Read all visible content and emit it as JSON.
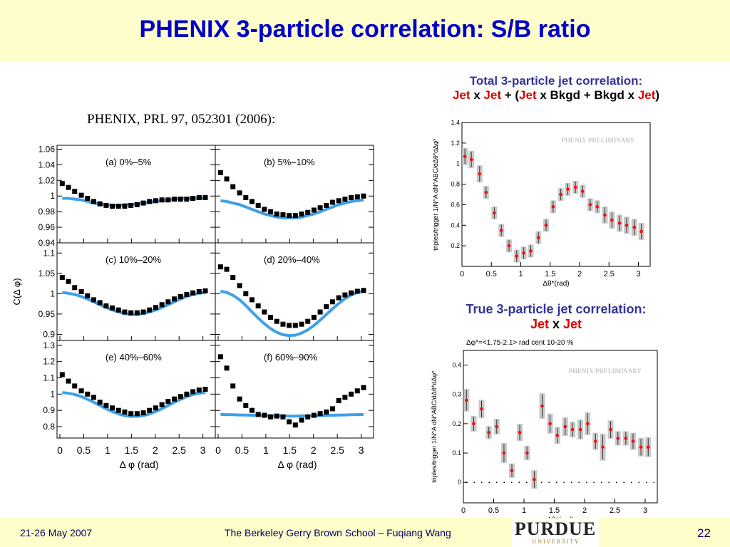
{
  "slide": {
    "title": "PHENIX 3-particle correlation: S/B ratio",
    "citation": "PHENIX, PRL 97, 052301 (2006):",
    "page_number": "22",
    "footer_date": "21-26 May 2007",
    "footer_event": "The Berkeley Gerry Brown School – Fuqiang Wang",
    "logo_text": "PURDUE",
    "logo_subtext": "U N I V E R S I T Y"
  },
  "right_top": {
    "heading": "Total 3-particle jet correlation:",
    "formula": [
      "Jet",
      " x ",
      "Jet",
      " + (",
      "Jet",
      " x Bkgd + Bkgd x ",
      "Jet",
      ")"
    ]
  },
  "right_bottom": {
    "heading": "True 3-particle jet correlation:",
    "formula": [
      "Jet",
      " x ",
      "Jet"
    ]
  },
  "chart_data": [
    {
      "type": "scatter",
      "title": "",
      "ylabel": "C(Δ φ)",
      "xlabel": "Δ φ (rad)",
      "xlim": [
        0,
        3.14
      ],
      "x_ticks": [
        "0",
        "0.5",
        "1",
        "1.5",
        "2",
        "2.5",
        "3"
      ],
      "panels": [
        {
          "label": "(a) 0%–5%",
          "ylim": [
            0.94,
            1.065
          ],
          "y_ticks": [
            "0.94",
            "0.96",
            "0.98",
            "1",
            "1.02",
            "1.04",
            "1.06"
          ],
          "x": [
            0.05,
            0.18,
            0.31,
            0.45,
            0.58,
            0.71,
            0.84,
            0.97,
            1.1,
            1.23,
            1.36,
            1.49,
            1.62,
            1.75,
            1.88,
            2.01,
            2.14,
            2.27,
            2.4,
            2.53,
            2.66,
            2.79,
            2.92,
            3.05
          ],
          "y": [
            1.016,
            1.011,
            1.006,
            1.001,
            0.997,
            0.993,
            0.99,
            0.988,
            0.987,
            0.987,
            0.987,
            0.988,
            0.989,
            0.991,
            0.993,
            0.994,
            0.995,
            0.995,
            0.996,
            0.996,
            0.996,
            0.997,
            0.998,
            0.998
          ],
          "fit": [
            0.997,
            0.997,
            0.996,
            0.995,
            0.993,
            0.991,
            0.99,
            0.989,
            0.988,
            0.988,
            0.989,
            0.989,
            0.99,
            0.991,
            0.992,
            0.993,
            0.994,
            0.995,
            0.996,
            0.997,
            0.997,
            0.997,
            0.997,
            0.998
          ]
        },
        {
          "label": "(b) 5%–10%",
          "ylim": [
            0.94,
            1.065
          ],
          "y_ticks": [],
          "x": [
            0.05,
            0.18,
            0.31,
            0.45,
            0.58,
            0.71,
            0.84,
            0.97,
            1.1,
            1.23,
            1.36,
            1.49,
            1.62,
            1.75,
            1.88,
            2.01,
            2.14,
            2.27,
            2.4,
            2.53,
            2.66,
            2.79,
            2.92,
            3.05
          ],
          "y": [
            1.03,
            1.022,
            1.012,
            1.004,
            0.998,
            0.993,
            0.988,
            0.983,
            0.98,
            0.977,
            0.976,
            0.975,
            0.975,
            0.977,
            0.979,
            0.982,
            0.985,
            0.988,
            0.992,
            0.994,
            0.996,
            0.998,
            0.999,
            1.0
          ],
          "fit": [
            0.994,
            0.993,
            0.991,
            0.989,
            0.986,
            0.983,
            0.98,
            0.977,
            0.975,
            0.973,
            0.972,
            0.972,
            0.972,
            0.973,
            0.975,
            0.977,
            0.98,
            0.983,
            0.986,
            0.989,
            0.991,
            0.993,
            0.994,
            0.995
          ]
        },
        {
          "label": "(c) 10%–20%",
          "ylim": [
            0.885,
            1.125
          ],
          "y_ticks": [
            "0.9",
            "0.95",
            "1",
            "1.05",
            "1.1"
          ],
          "x": [
            0.05,
            0.18,
            0.31,
            0.45,
            0.58,
            0.71,
            0.84,
            0.97,
            1.1,
            1.23,
            1.36,
            1.49,
            1.62,
            1.75,
            1.88,
            2.01,
            2.14,
            2.27,
            2.4,
            2.53,
            2.66,
            2.79,
            2.92,
            3.05
          ],
          "y": [
            1.04,
            1.03,
            1.015,
            1.005,
            0.995,
            0.985,
            0.978,
            0.97,
            0.965,
            0.96,
            0.955,
            0.953,
            0.953,
            0.955,
            0.96,
            0.966,
            0.973,
            0.98,
            0.987,
            0.993,
            0.998,
            1.002,
            1.005,
            1.007
          ],
          "fit": [
            1.003,
            1.001,
            0.998,
            0.993,
            0.987,
            0.98,
            0.973,
            0.966,
            0.96,
            0.955,
            0.951,
            0.949,
            0.949,
            0.951,
            0.955,
            0.96,
            0.966,
            0.973,
            0.98,
            0.987,
            0.993,
            0.998,
            1.001,
            1.003
          ]
        },
        {
          "label": "(d) 20%–40%",
          "ylim": [
            0.885,
            1.125
          ],
          "y_ticks": [],
          "x": [
            0.05,
            0.18,
            0.31,
            0.45,
            0.58,
            0.71,
            0.84,
            0.97,
            1.1,
            1.23,
            1.36,
            1.49,
            1.62,
            1.75,
            1.88,
            2.01,
            2.14,
            2.27,
            2.4,
            2.53,
            2.66,
            2.79,
            2.92,
            3.05
          ],
          "y": [
            1.066,
            1.06,
            1.04,
            1.02,
            1.0,
            0.985,
            0.97,
            0.955,
            0.942,
            0.932,
            0.925,
            0.922,
            0.922,
            0.925,
            0.932,
            0.942,
            0.955,
            0.968,
            0.98,
            0.99,
            0.997,
            1.002,
            1.006,
            1.008
          ],
          "fit": [
            1.006,
            1.003,
            0.996,
            0.985,
            0.971,
            0.955,
            0.94,
            0.926,
            0.914,
            0.905,
            0.899,
            0.897,
            0.898,
            0.903,
            0.911,
            0.922,
            0.935,
            0.949,
            0.963,
            0.976,
            0.988,
            0.997,
            1.003,
            1.006
          ]
        },
        {
          "label": "(e) 40%–60%",
          "ylim": [
            0.73,
            1.33
          ],
          "y_ticks": [
            "0.8",
            "0.9",
            "1",
            "1.1",
            "1.2",
            "1.3"
          ],
          "x": [
            0.05,
            0.18,
            0.31,
            0.45,
            0.58,
            0.71,
            0.84,
            0.97,
            1.1,
            1.23,
            1.36,
            1.49,
            1.62,
            1.75,
            1.88,
            2.01,
            2.14,
            2.27,
            2.4,
            2.53,
            2.66,
            2.79,
            2.92,
            3.05
          ],
          "y": [
            1.12,
            1.08,
            1.05,
            1.02,
            1.0,
            0.98,
            0.95,
            0.93,
            0.915,
            0.9,
            0.89,
            0.88,
            0.88,
            0.885,
            0.9,
            0.915,
            0.935,
            0.955,
            0.97,
            0.985,
            1.0,
            1.015,
            1.025,
            1.03
          ],
          "fit": [
            1.01,
            1.005,
            0.998,
            0.985,
            0.968,
            0.95,
            0.93,
            0.91,
            0.893,
            0.878,
            0.868,
            0.863,
            0.863,
            0.868,
            0.878,
            0.893,
            0.91,
            0.93,
            0.95,
            0.968,
            0.985,
            0.998,
            1.005,
            1.01
          ]
        },
        {
          "label": "(f) 60%–90%",
          "ylim": [
            0.73,
            1.33
          ],
          "y_ticks": [],
          "x": [
            0.05,
            0.18,
            0.31,
            0.45,
            0.58,
            0.71,
            0.84,
            0.97,
            1.1,
            1.23,
            1.36,
            1.49,
            1.62,
            1.75,
            1.88,
            2.01,
            2.14,
            2.27,
            2.4,
            2.53,
            2.66,
            2.79,
            2.92,
            3.05
          ],
          "y": [
            1.23,
            1.16,
            1.05,
            0.97,
            0.93,
            0.9,
            0.875,
            0.87,
            0.86,
            0.865,
            0.86,
            0.83,
            0.81,
            0.84,
            0.86,
            0.87,
            0.88,
            0.89,
            0.91,
            0.96,
            0.98,
            1.0,
            1.02,
            1.04
          ],
          "fit": [
            0.875,
            0.874,
            0.873,
            0.872,
            0.871,
            0.87,
            0.869,
            0.868,
            0.867,
            0.866,
            0.866,
            0.865,
            0.865,
            0.866,
            0.866,
            0.867,
            0.868,
            0.869,
            0.87,
            0.871,
            0.872,
            0.873,
            0.874,
            0.875
          ]
        }
      ]
    },
    {
      "type": "scatter",
      "title": "",
      "ylabel": "triples/trigger 1/N^A dN^ABC/dΔθ*dΔφ*",
      "xlabel": "Δθ*(rad)",
      "watermark": "PHENIX PRELIMINARY",
      "xlim": [
        0,
        3.2
      ],
      "ylim": [
        0,
        1.4
      ],
      "x_ticks": [
        "0",
        "0.5",
        "1",
        "1.5",
        "2",
        "2.5",
        "3"
      ],
      "y_ticks": [
        "0.2",
        "0.4",
        "0.6",
        "0.8",
        "1",
        "1.2",
        "1.4"
      ],
      "x": [
        0.05,
        0.16,
        0.3,
        0.41,
        0.55,
        0.67,
        0.8,
        0.93,
        1.05,
        1.17,
        1.3,
        1.43,
        1.55,
        1.68,
        1.8,
        1.93,
        2.05,
        2.18,
        2.3,
        2.43,
        2.55,
        2.68,
        2.8,
        2.93,
        3.05
      ],
      "y": [
        1.07,
        1.04,
        0.9,
        0.72,
        0.52,
        0.35,
        0.2,
        0.1,
        0.13,
        0.15,
        0.28,
        0.4,
        0.58,
        0.7,
        0.75,
        0.77,
        0.73,
        0.6,
        0.58,
        0.5,
        0.45,
        0.42,
        0.4,
        0.38,
        0.34
      ]
    },
    {
      "type": "scatter",
      "title": "Δφ*=<1.75-2.1> rad     cent 10-20 %",
      "ylabel": "triples/trigger 1/N^A dN^ABC/dΔθ*dΔφ*",
      "xlabel": "Δθ*(rad)",
      "watermark": "PHENIX PRELIMINARY",
      "xlim": [
        0,
        3.2
      ],
      "ylim": [
        -0.07,
        0.45
      ],
      "x_ticks": [
        "0",
        "0.5",
        "1",
        "1.5",
        "2",
        "2.5",
        "3"
      ],
      "y_ticks": [
        "0",
        "0.1",
        "0.2",
        "0.3",
        "0.4"
      ],
      "x": [
        0.05,
        0.17,
        0.3,
        0.42,
        0.55,
        0.67,
        0.8,
        0.93,
        1.05,
        1.17,
        1.3,
        1.43,
        1.55,
        1.68,
        1.8,
        1.93,
        2.05,
        2.18,
        2.3,
        2.43,
        2.55,
        2.68,
        2.8,
        2.93,
        3.05
      ],
      "y": [
        0.28,
        0.2,
        0.25,
        0.17,
        0.19,
        0.1,
        0.04,
        0.17,
        0.1,
        0.01,
        0.26,
        0.2,
        0.16,
        0.19,
        0.18,
        0.18,
        0.2,
        0.14,
        0.12,
        0.18,
        0.15,
        0.15,
        0.14,
        0.12,
        0.12
      ]
    }
  ]
}
